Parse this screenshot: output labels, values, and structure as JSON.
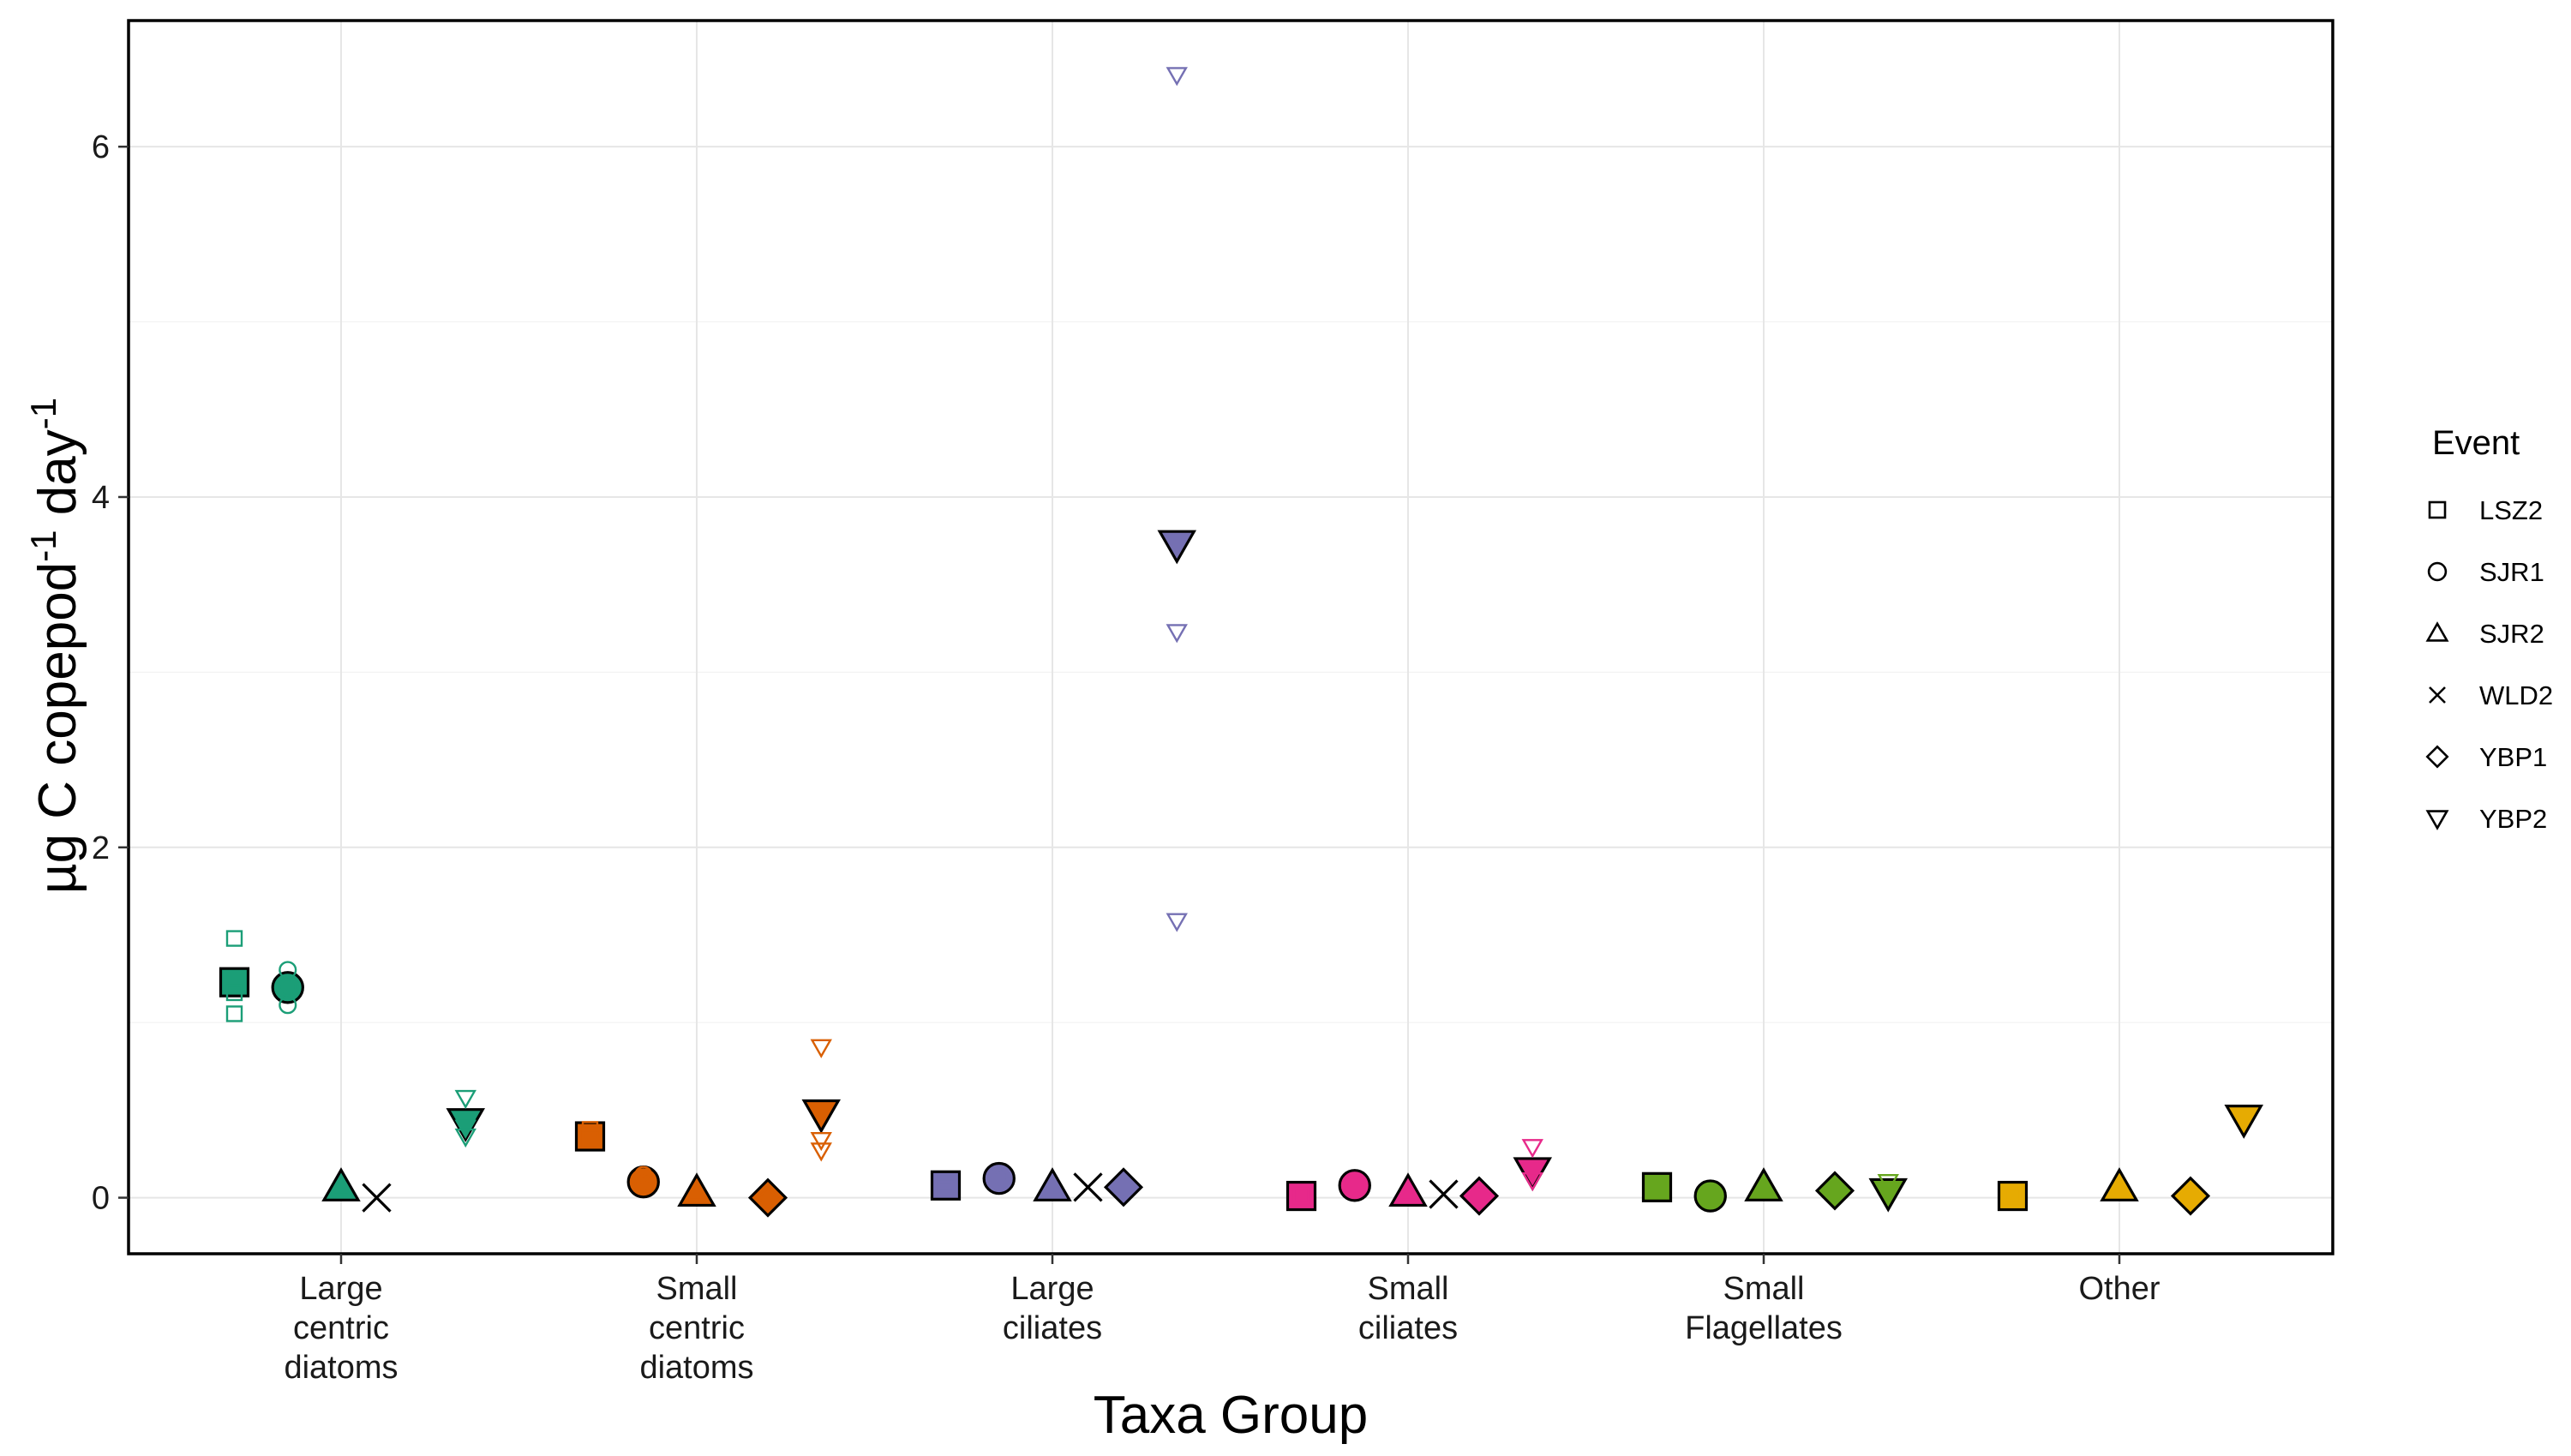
{
  "chart_data": {
    "type": "scatter",
    "xlabel": "Taxa Group",
    "ylabel_main": "µg C copepod",
    "ylabel_sup1": "-1",
    "ylabel_mid": " day",
    "ylabel_sup2": "-1",
    "ylim": [
      -0.32,
      6.72
    ],
    "yticks": [
      0,
      2,
      4,
      6
    ],
    "grid": true,
    "legend_position": "right",
    "categories": [
      [
        "Large",
        "centric",
        "diatoms"
      ],
      [
        "Small",
        "centric",
        "diatoms"
      ],
      [
        "Large",
        "ciliates"
      ],
      [
        "Small",
        "ciliates"
      ],
      [
        "Small",
        "Flagellates"
      ],
      [
        "Other"
      ]
    ],
    "category_colors": [
      "#1b9e77",
      "#d95f02",
      "#7570b3",
      "#e7298a",
      "#66a61e",
      "#e6ab02"
    ],
    "legend": {
      "title": "Event",
      "items": [
        {
          "label": "LSZ2",
          "shape": "square"
        },
        {
          "label": "SJR1",
          "shape": "circle"
        },
        {
          "label": "SJR2",
          "shape": "triangle"
        },
        {
          "label": "WLD2",
          "shape": "cross"
        },
        {
          "label": "YBP1",
          "shape": "diamond"
        },
        {
          "label": "YBP2",
          "shape": "triangle-down"
        }
      ]
    },
    "event_offsets": {
      "LSZ2": -0.3,
      "SJR1": -0.15,
      "SJR2": 0.0,
      "WLD2": 0.1,
      "YBP1": 0.2,
      "YBP2": 0.35
    },
    "means": [
      {
        "category": 0,
        "event": "LSZ2",
        "y": 1.23
      },
      {
        "category": 0,
        "event": "SJR1",
        "y": 1.2
      },
      {
        "category": 0,
        "event": "SJR2",
        "y": 0.06
      },
      {
        "category": 0,
        "event": "WLD2",
        "y": 0.0
      },
      {
        "category": 0,
        "event": "YBP2",
        "y": 0.43
      },
      {
        "category": 1,
        "event": "LSZ2",
        "y": 0.35
      },
      {
        "category": 1,
        "event": "SJR1",
        "y": 0.09
      },
      {
        "category": 1,
        "event": "SJR2",
        "y": 0.03
      },
      {
        "category": 1,
        "event": "YBP1",
        "y": 0.0
      },
      {
        "category": 1,
        "event": "YBP2",
        "y": 0.48
      },
      {
        "category": 2,
        "event": "LSZ2",
        "y": 0.07
      },
      {
        "category": 2,
        "event": "SJR1",
        "y": 0.11
      },
      {
        "category": 2,
        "event": "SJR2",
        "y": 0.06
      },
      {
        "category": 2,
        "event": "WLD2",
        "y": 0.06
      },
      {
        "category": 2,
        "event": "YBP1",
        "y": 0.06
      },
      {
        "category": 2,
        "event": "YBP2",
        "y": 3.73
      },
      {
        "category": 3,
        "event": "LSZ2",
        "y": 0.01
      },
      {
        "category": 3,
        "event": "SJR1",
        "y": 0.07
      },
      {
        "category": 3,
        "event": "SJR2",
        "y": 0.03
      },
      {
        "category": 3,
        "event": "WLD2",
        "y": 0.02
      },
      {
        "category": 3,
        "event": "YBP1",
        "y": 0.01
      },
      {
        "category": 3,
        "event": "YBP2",
        "y": 0.15
      },
      {
        "category": 4,
        "event": "LSZ2",
        "y": 0.06
      },
      {
        "category": 4,
        "event": "SJR1",
        "y": 0.01
      },
      {
        "category": 4,
        "event": "SJR2",
        "y": 0.06
      },
      {
        "category": 4,
        "event": "YBP1",
        "y": 0.04
      },
      {
        "category": 4,
        "event": "YBP2",
        "y": 0.03
      },
      {
        "category": 5,
        "event": "LSZ2",
        "y": 0.01
      },
      {
        "category": 5,
        "event": "SJR2",
        "y": 0.06
      },
      {
        "category": 5,
        "event": "YBP1",
        "y": 0.01
      },
      {
        "category": 5,
        "event": "YBP2",
        "y": 0.45
      }
    ],
    "replicates": [
      {
        "category": 0,
        "event": "LSZ2",
        "y": 1.48
      },
      {
        "category": 0,
        "event": "LSZ2",
        "y": 1.17
      },
      {
        "category": 0,
        "event": "LSZ2",
        "y": 1.05
      },
      {
        "category": 0,
        "event": "SJR1",
        "y": 1.3
      },
      {
        "category": 0,
        "event": "SJR1",
        "y": 1.2
      },
      {
        "category": 0,
        "event": "SJR1",
        "y": 1.1
      },
      {
        "category": 0,
        "event": "SJR2",
        "y": 0.06
      },
      {
        "category": 0,
        "event": "YBP2",
        "y": 0.57
      },
      {
        "category": 0,
        "event": "YBP2",
        "y": 0.4
      },
      {
        "category": 0,
        "event": "YBP2",
        "y": 0.35
      },
      {
        "category": 1,
        "event": "LSZ2",
        "y": 0.39
      },
      {
        "category": 1,
        "event": "LSZ2",
        "y": 0.33
      },
      {
        "category": 1,
        "event": "SJR1",
        "y": 0.13
      },
      {
        "category": 1,
        "event": "SJR1",
        "y": 0.08
      },
      {
        "category": 1,
        "event": "SJR2",
        "y": 0.03
      },
      {
        "category": 1,
        "event": "YBP1",
        "y": 0.0
      },
      {
        "category": 1,
        "event": "YBP2",
        "y": 0.86
      },
      {
        "category": 1,
        "event": "YBP2",
        "y": 0.33
      },
      {
        "category": 1,
        "event": "YBP2",
        "y": 0.27
      },
      {
        "category": 2,
        "event": "LSZ2",
        "y": 0.09
      },
      {
        "category": 2,
        "event": "LSZ2",
        "y": 0.05
      },
      {
        "category": 2,
        "event": "SJR1",
        "y": 0.12
      },
      {
        "category": 2,
        "event": "SJR1",
        "y": 0.1
      },
      {
        "category": 2,
        "event": "SJR2",
        "y": 0.06
      },
      {
        "category": 2,
        "event": "YBP1",
        "y": 0.06
      },
      {
        "category": 2,
        "event": "YBP2",
        "y": 6.41
      },
      {
        "category": 2,
        "event": "YBP2",
        "y": 3.23
      },
      {
        "category": 2,
        "event": "YBP2",
        "y": 1.58
      },
      {
        "category": 3,
        "event": "LSZ2",
        "y": 0.01
      },
      {
        "category": 3,
        "event": "SJR1",
        "y": 0.07
      },
      {
        "category": 3,
        "event": "SJR2",
        "y": 0.03
      },
      {
        "category": 3,
        "event": "YBP1",
        "y": 0.01
      },
      {
        "category": 3,
        "event": "YBP2",
        "y": 0.29
      },
      {
        "category": 3,
        "event": "YBP2",
        "y": 0.1
      },
      {
        "category": 4,
        "event": "LSZ2",
        "y": 0.08
      },
      {
        "category": 4,
        "event": "LSZ2",
        "y": 0.04
      },
      {
        "category": 4,
        "event": "SJR1",
        "y": 0.01
      },
      {
        "category": 4,
        "event": "SJR2",
        "y": 0.07
      },
      {
        "category": 4,
        "event": "YBP1",
        "y": 0.04
      },
      {
        "category": 4,
        "event": "YBP2",
        "y": 0.09
      },
      {
        "category": 4,
        "event": "YBP2",
        "y": 0.02
      },
      {
        "category": 5,
        "event": "LSZ2",
        "y": 0.01
      },
      {
        "category": 5,
        "event": "SJR2",
        "y": 0.07
      },
      {
        "category": 5,
        "event": "YBP1",
        "y": 0.01
      },
      {
        "category": 5,
        "event": "YBP2",
        "y": 0.46
      }
    ]
  }
}
